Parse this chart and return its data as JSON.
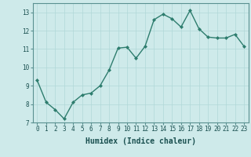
{
  "x": [
    0,
    1,
    2,
    3,
    4,
    5,
    6,
    7,
    8,
    9,
    10,
    11,
    12,
    13,
    14,
    15,
    16,
    17,
    18,
    19,
    20,
    21,
    22,
    23
  ],
  "y": [
    9.3,
    8.1,
    7.7,
    7.2,
    8.1,
    8.5,
    8.6,
    9.0,
    9.85,
    11.05,
    11.1,
    10.5,
    11.15,
    12.6,
    12.9,
    12.65,
    12.2,
    13.1,
    12.1,
    11.65,
    11.6,
    11.6,
    11.8,
    11.15
  ],
  "line_color": "#2e7d6e",
  "marker": "D",
  "markersize": 2.0,
  "linewidth": 1.0,
  "xlabel": "Humidex (Indice chaleur)",
  "xlabel_fontsize": 7,
  "ylim": [
    7,
    13.5
  ],
  "xlim": [
    -0.5,
    23.5
  ],
  "yticks": [
    7,
    8,
    9,
    10,
    11,
    12,
    13
  ],
  "xticks": [
    0,
    1,
    2,
    3,
    4,
    5,
    6,
    7,
    8,
    9,
    10,
    11,
    12,
    13,
    14,
    15,
    16,
    17,
    18,
    19,
    20,
    21,
    22,
    23
  ],
  "tick_fontsize": 5.5,
  "background_color": "#ceeaea",
  "grid_color": "#b0d8d8",
  "grid_linewidth": 0.5,
  "spine_color": "#5a9090"
}
